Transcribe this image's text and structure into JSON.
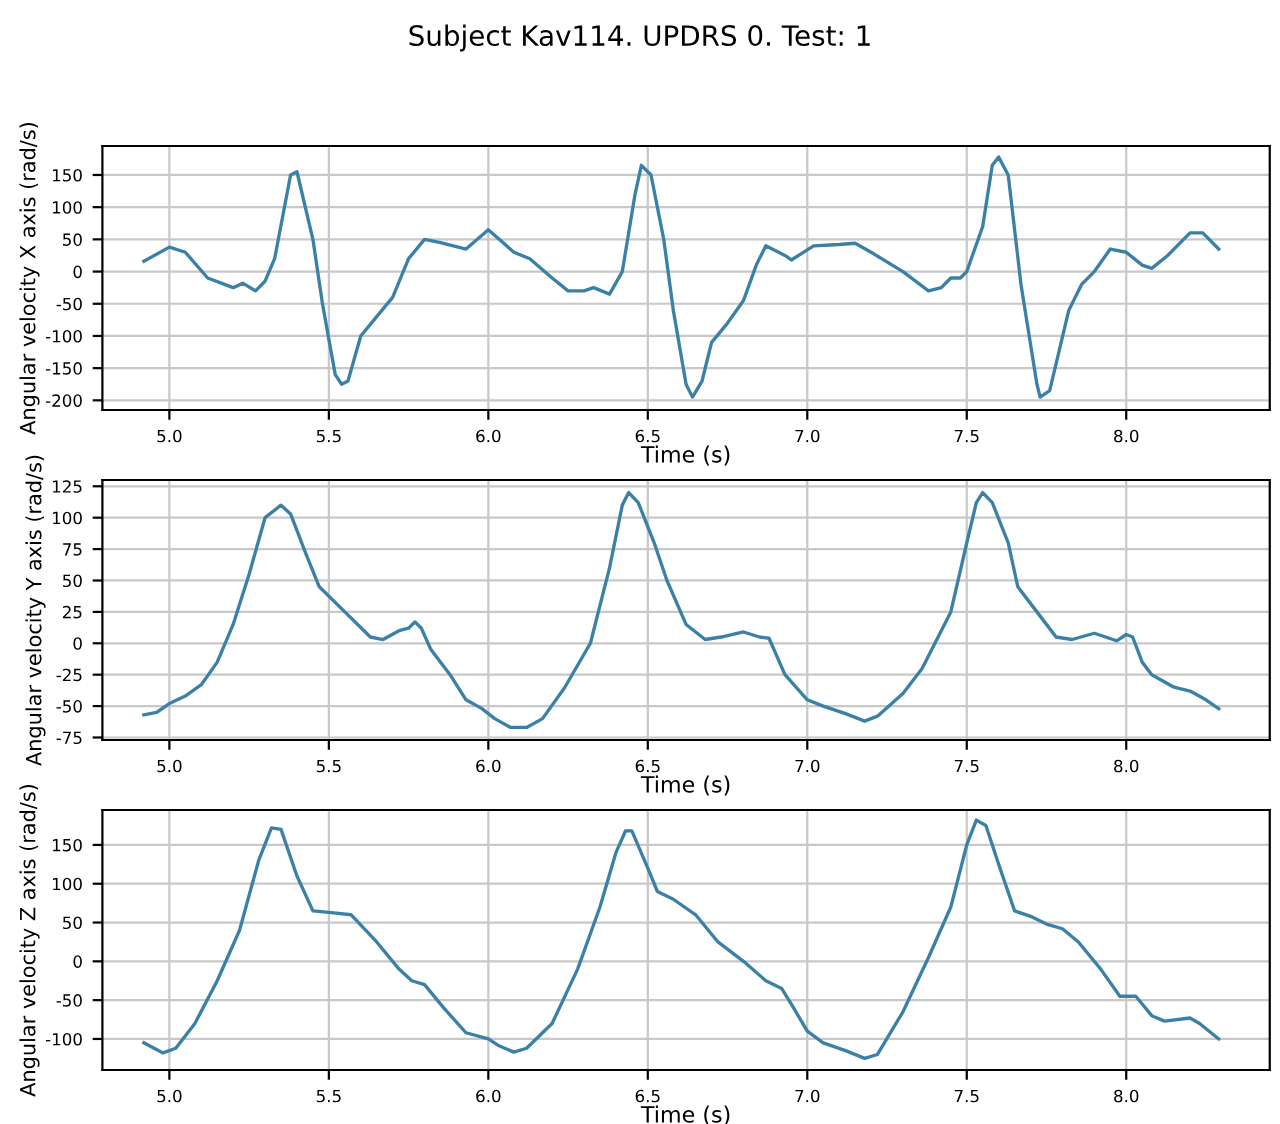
{
  "chart_data": [
    {
      "type": "line",
      "title": "Subject Kav114. UPDRS 0. Test: 1",
      "xlabel": "Time (s)",
      "ylabel": "Angular velocity X axis (rad/s)",
      "grid": true,
      "xlim": [
        4.79,
        8.45
      ],
      "xticks": [
        {
          "value": 5,
          "label": "5.0"
        },
        5.5,
        {
          "value": 6,
          "label": "6.0"
        },
        6.5,
        {
          "value": 7,
          "label": "7.0"
        },
        7.5,
        {
          "value": 8,
          "label": "8.0"
        }
      ],
      "ylim": [
        -215,
        195
      ],
      "yticks": [
        -200,
        -150,
        -100,
        -50,
        0,
        50,
        100,
        150
      ],
      "x": [
        4.92,
        5.0,
        5.05,
        5.12,
        5.2,
        5.23,
        5.27,
        5.3,
        5.33,
        5.38,
        5.4,
        5.45,
        5.48,
        5.52,
        5.54,
        5.56,
        5.6,
        5.65,
        5.7,
        5.75,
        5.8,
        5.85,
        5.93,
        6.0,
        6.08,
        6.13,
        6.2,
        6.25,
        6.3,
        6.33,
        6.38,
        6.42,
        6.46,
        6.48,
        6.51,
        6.55,
        6.58,
        6.62,
        6.64,
        6.67,
        6.7,
        6.75,
        6.8,
        6.84,
        6.87,
        6.93,
        6.95,
        7.02,
        7.1,
        7.15,
        7.2,
        7.3,
        7.38,
        7.42,
        7.45,
        7.48,
        7.5,
        7.55,
        7.58,
        7.6,
        7.63,
        7.67,
        7.72,
        7.73,
        7.76,
        7.82,
        7.86,
        7.9,
        7.95,
        8.0,
        8.05,
        8.08,
        8.13,
        8.2,
        8.24,
        8.29
      ],
      "series": [
        {
          "color": "#3b80a6",
          "values": [
            16,
            38,
            30,
            -10,
            -25,
            -18,
            -30,
            -15,
            20,
            150,
            155,
            50,
            -50,
            -160,
            -175,
            -170,
            -100,
            -70,
            -40,
            20,
            50,
            45,
            35,
            65,
            30,
            20,
            -10,
            -30,
            -30,
            -25,
            -35,
            0,
            120,
            165,
            150,
            50,
            -60,
            -175,
            -195,
            -170,
            -110,
            -80,
            -45,
            10,
            40,
            25,
            18,
            40,
            42,
            44,
            30,
            0,
            -30,
            -25,
            -10,
            -10,
            0,
            70,
            165,
            178,
            150,
            -20,
            -175,
            -195,
            -185,
            -60,
            -20,
            0,
            35,
            30,
            10,
            5,
            25,
            60,
            60,
            35
          ]
        }
      ]
    },
    {
      "type": "line",
      "xlabel": "Time (s)",
      "ylabel": "Angular velocity Y axis (rad/s)",
      "grid": true,
      "xlim": [
        4.79,
        8.45
      ],
      "xticks": [
        {
          "value": 5,
          "label": "5.0"
        },
        5.5,
        {
          "value": 6,
          "label": "6.0"
        },
        6.5,
        {
          "value": 7,
          "label": "7.0"
        },
        7.5,
        {
          "value": 8,
          "label": "8.0"
        }
      ],
      "ylim": [
        -77,
        130
      ],
      "yticks": [
        -75,
        -50,
        -25,
        0,
        25,
        50,
        75,
        100,
        125
      ],
      "x": [
        4.92,
        4.96,
        5.0,
        5.05,
        5.1,
        5.15,
        5.2,
        5.25,
        5.3,
        5.35,
        5.38,
        5.43,
        5.47,
        5.55,
        5.63,
        5.67,
        5.72,
        5.75,
        5.77,
        5.79,
        5.82,
        5.88,
        5.93,
        5.98,
        6.02,
        6.07,
        6.12,
        6.17,
        6.24,
        6.32,
        6.38,
        6.42,
        6.44,
        6.47,
        6.52,
        6.56,
        6.62,
        6.68,
        6.73,
        6.8,
        6.85,
        6.88,
        6.93,
        7.0,
        7.05,
        7.12,
        7.18,
        7.22,
        7.3,
        7.36,
        7.45,
        7.5,
        7.53,
        7.55,
        7.58,
        7.63,
        7.66,
        7.72,
        7.78,
        7.83,
        7.9,
        7.97,
        8.0,
        8.02,
        8.05,
        8.08,
        8.15,
        8.2,
        8.25,
        8.29
      ],
      "series": [
        {
          "color": "#3b80a6",
          "values": [
            -57,
            -55,
            -48,
            -42,
            -33,
            -15,
            15,
            55,
            100,
            110,
            103,
            70,
            45,
            25,
            5,
            3,
            10,
            12,
            17,
            12,
            -5,
            -25,
            -45,
            -52,
            -60,
            -67,
            -67,
            -60,
            -35,
            0,
            60,
            110,
            120,
            112,
            80,
            50,
            15,
            3,
            5,
            9,
            5,
            4,
            -25,
            -45,
            -50,
            -56,
            -62,
            -58,
            -40,
            -20,
            25,
            80,
            112,
            120,
            112,
            80,
            45,
            25,
            5,
            3,
            8,
            2,
            7,
            5,
            -15,
            -25,
            -35,
            -38,
            -45,
            -52
          ]
        }
      ]
    },
    {
      "type": "line",
      "xlabel": "Time (s)",
      "ylabel": "Angular velocity Z axis (rad/s)",
      "grid": true,
      "xlim": [
        4.79,
        8.45
      ],
      "xticks": [
        {
          "value": 5,
          "label": "5.0"
        },
        5.5,
        {
          "value": 6,
          "label": "6.0"
        },
        6.5,
        {
          "value": 7,
          "label": "7.0"
        },
        7.5,
        {
          "value": 8,
          "label": "8.0"
        }
      ],
      "ylim": [
        -140,
        195
      ],
      "yticks": [
        -100,
        -50,
        0,
        50,
        100,
        150
      ],
      "x": [
        4.92,
        4.98,
        5.02,
        5.08,
        5.15,
        5.22,
        5.28,
        5.32,
        5.35,
        5.4,
        5.45,
        5.5,
        5.57,
        5.65,
        5.72,
        5.76,
        5.8,
        5.86,
        5.93,
        6.0,
        6.03,
        6.08,
        6.12,
        6.2,
        6.28,
        6.35,
        6.4,
        6.43,
        6.45,
        6.5,
        6.53,
        6.58,
        6.65,
        6.72,
        6.8,
        6.87,
        6.92,
        6.95,
        7.0,
        7.05,
        7.12,
        7.18,
        7.22,
        7.3,
        7.38,
        7.45,
        7.5,
        7.53,
        7.56,
        7.6,
        7.65,
        7.7,
        7.75,
        7.8,
        7.85,
        7.92,
        7.98,
        8.03,
        8.08,
        8.12,
        8.2,
        8.23,
        8.29
      ],
      "series": [
        {
          "color": "#3b80a6",
          "values": [
            -105,
            -118,
            -112,
            -80,
            -25,
            40,
            130,
            172,
            170,
            110,
            65,
            63,
            60,
            25,
            -10,
            -25,
            -30,
            -60,
            -92,
            -100,
            -108,
            -117,
            -112,
            -80,
            -10,
            70,
            140,
            168,
            168,
            120,
            90,
            80,
            60,
            25,
            0,
            -25,
            -35,
            -55,
            -90,
            -105,
            -115,
            -125,
            -120,
            -65,
            5,
            70,
            150,
            182,
            175,
            125,
            65,
            58,
            48,
            42,
            25,
            -10,
            -45,
            -45,
            -70,
            -77,
            -73,
            -80,
            -100
          ]
        }
      ]
    }
  ]
}
